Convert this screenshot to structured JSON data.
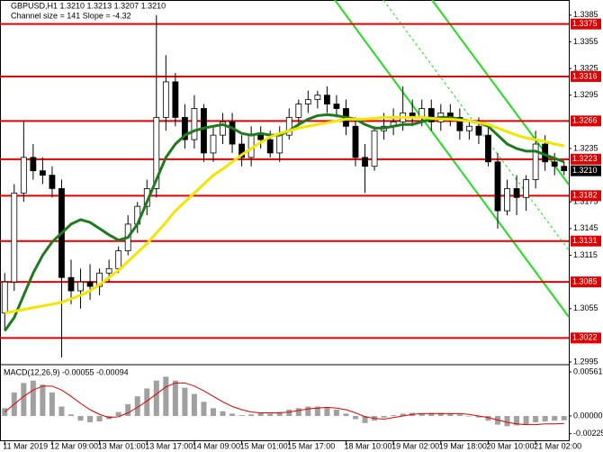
{
  "chart_data": [
    {
      "type": "candlestick",
      "title": "GBPUSD,H1  1.3210 1.3213 1.3207 1.3210",
      "subtitle": "Channel size = 141 Slope = -4.32",
      "categories": [
        "11 Mar 2019",
        null,
        null,
        null,
        null,
        "12 Mar 09:00",
        null,
        null,
        null,
        null,
        "13 Mar 01:00",
        null,
        null,
        null,
        null,
        "13 Mar 17:00",
        null,
        null,
        null,
        null,
        "14 Mar 09:00",
        null,
        null,
        null,
        null,
        "15 Mar 01:00",
        null,
        null,
        null,
        null,
        "15 Mar 17:00",
        null,
        null,
        null,
        null,
        null,
        "18 Mar 10:00",
        null,
        null,
        null,
        null,
        "19 Mar 02:00",
        null,
        null,
        null,
        null,
        "19 Mar 18:00",
        null,
        null,
        null,
        null,
        "20 Mar 10:00",
        null,
        null,
        null,
        null,
        "21 Mar 02:00",
        null,
        null,
        null
      ],
      "open": [
        1.305,
        1.3085,
        1.3185,
        1.3225,
        1.321,
        1.3205,
        1.319,
        1.309,
        1.3075,
        1.3085,
        1.308,
        1.3095,
        1.31,
        1.312,
        1.315,
        1.317,
        1.319,
        1.327,
        1.331,
        1.327,
        1.3245,
        1.328,
        1.323,
        1.325,
        1.3265,
        1.324,
        1.3225,
        1.325,
        1.3245,
        1.323,
        1.325,
        1.327,
        1.3285,
        1.329,
        1.3295,
        1.3285,
        1.328,
        1.326,
        1.3225,
        1.3215,
        1.3255,
        1.326,
        1.3265,
        1.3275,
        1.327,
        1.328,
        1.3265,
        1.3275,
        1.327,
        1.3255,
        1.326,
        1.325,
        1.322,
        1.3165,
        1.319,
        1.318,
        1.32,
        1.324,
        1.322,
        1.3215
      ],
      "high": [
        1.3095,
        1.3195,
        1.3265,
        1.324,
        1.3225,
        1.3215,
        1.32,
        1.311,
        1.31,
        1.3105,
        1.31,
        1.311,
        1.3125,
        1.316,
        1.3175,
        1.32,
        1.3385,
        1.334,
        1.332,
        1.3285,
        1.3295,
        1.3285,
        1.326,
        1.3275,
        1.3275,
        1.325,
        1.326,
        1.326,
        1.3255,
        1.326,
        1.328,
        1.329,
        1.33,
        1.33,
        1.3305,
        1.3295,
        1.329,
        1.327,
        1.324,
        1.326,
        1.3275,
        1.328,
        1.3305,
        1.329,
        1.329,
        1.329,
        1.3285,
        1.3285,
        1.328,
        1.3265,
        1.327,
        1.326,
        1.323,
        1.32,
        1.3205,
        1.3205,
        1.3255,
        1.325,
        1.323,
        1.322
      ],
      "low": [
        1.303,
        1.3075,
        1.3175,
        1.32,
        1.3195,
        1.318,
        1.3,
        1.306,
        1.3055,
        1.3065,
        1.307,
        1.3085,
        1.3095,
        1.3115,
        1.314,
        1.316,
        1.318,
        1.3255,
        1.326,
        1.3235,
        1.3235,
        1.322,
        1.322,
        1.324,
        1.323,
        1.3215,
        1.3215,
        1.3235,
        1.3225,
        1.322,
        1.3245,
        1.326,
        1.3275,
        1.328,
        1.3275,
        1.327,
        1.325,
        1.3215,
        1.3185,
        1.321,
        1.3245,
        1.325,
        1.3255,
        1.326,
        1.326,
        1.3255,
        1.3255,
        1.326,
        1.3245,
        1.3245,
        1.324,
        1.3215,
        1.3145,
        1.316,
        1.316,
        1.3165,
        1.319,
        1.321,
        1.3205,
        1.3205
      ],
      "close": [
        1.3085,
        1.3185,
        1.3225,
        1.321,
        1.3205,
        1.319,
        1.309,
        1.3075,
        1.3085,
        1.308,
        1.3095,
        1.31,
        1.312,
        1.315,
        1.317,
        1.319,
        1.327,
        1.331,
        1.327,
        1.3245,
        1.328,
        1.323,
        1.325,
        1.3265,
        1.324,
        1.3225,
        1.325,
        1.3245,
        1.323,
        1.325,
        1.327,
        1.3285,
        1.329,
        1.3295,
        1.3285,
        1.328,
        1.326,
        1.3225,
        1.3215,
        1.3255,
        1.326,
        1.3265,
        1.3275,
        1.327,
        1.328,
        1.3265,
        1.3275,
        1.327,
        1.3255,
        1.326,
        1.325,
        1.322,
        1.3165,
        1.319,
        1.318,
        1.32,
        1.324,
        1.322,
        1.3215,
        1.321
      ],
      "series": [
        {
          "color": "#1f7a1f",
          "values": [
            1.303,
            1.3045,
            1.307,
            1.3095,
            1.3115,
            1.313,
            1.314,
            1.315,
            1.3155,
            1.3152,
            1.3145,
            1.3138,
            1.3132,
            1.3135,
            1.315,
            1.3175,
            1.32,
            1.3225,
            1.324,
            1.325,
            1.3255,
            1.3258,
            1.326,
            1.3262,
            1.3258,
            1.3252,
            1.325,
            1.3252,
            1.325,
            1.325,
            1.3255,
            1.3262,
            1.3268,
            1.3272,
            1.3273,
            1.3272,
            1.327,
            1.3268,
            1.3262,
            1.3258,
            1.3258,
            1.326,
            1.3262,
            1.3262,
            1.3265,
            1.3268,
            1.327,
            1.327,
            1.3268,
            1.3266,
            1.3264,
            1.326,
            1.325,
            1.324,
            1.3235,
            1.3232,
            1.3232,
            1.3228,
            1.3224,
            1.322
          ]
        },
        {
          "color": "#f2e600",
          "values": [
            1.305,
            1.3052,
            1.3054,
            1.3056,
            1.3058,
            1.306,
            1.3062,
            1.3066,
            1.307,
            1.3075,
            1.3082,
            1.309,
            1.3098,
            1.3108,
            1.3118,
            1.3128,
            1.314,
            1.3152,
            1.3165,
            1.3175,
            1.3185,
            1.3195,
            1.3205,
            1.3212,
            1.322,
            1.3228,
            1.3235,
            1.3242,
            1.3248,
            1.3252,
            1.3255,
            1.3258,
            1.326,
            1.3262,
            1.3264,
            1.3266,
            1.3268,
            1.3268,
            1.3268,
            1.3269,
            1.327,
            1.327,
            1.327,
            1.327,
            1.327,
            1.3269,
            1.3268,
            1.3268,
            1.3267,
            1.3266,
            1.3264,
            1.3262,
            1.3258,
            1.3254,
            1.325,
            1.3247,
            1.3245,
            1.3243,
            1.324,
            1.3238
          ]
        }
      ],
      "levels": [
        1.3375,
        1.3316,
        1.3266,
        1.3223,
        1.3182,
        1.3131,
        1.3085,
        1.3022
      ],
      "level_color": "#e00000",
      "last_price": {
        "value": 1.321,
        "label": "1.3210"
      },
      "ylim": [
        1.2992,
        1.3402
      ],
      "yticks": [
        1.3385,
        1.3355,
        1.3325,
        1.3295,
        1.3235,
        1.3175,
        1.3145,
        1.3115,
        1.3055,
        1.2995
      ]
    },
    {
      "type": "macd",
      "title": "MACD(12,26,9) -0.00055 -0.00094",
      "values": [
        0.001,
        0.003,
        0.0042,
        0.0045,
        0.004,
        0.003,
        0.0012,
        0.0002,
        -0.0006,
        -0.0008,
        -0.0007,
        -0.0004,
        0.0005,
        0.0015,
        0.0025,
        0.0035,
        0.0045,
        0.005,
        0.0045,
        0.0036,
        0.0028,
        0.0018,
        0.001,
        0.0006,
        0.0003,
        0.0001,
        0.0002,
        0.0004,
        0.0003,
        0.0005,
        0.0008,
        0.001,
        0.0012,
        0.0012,
        0.0011,
        0.0008,
        0.0003,
        -0.0004,
        -0.0009,
        -0.0006,
        -0.0002,
        0.0001,
        0.0003,
        0.0004,
        0.0003,
        0.0004,
        0.0004,
        0.0003,
        0.0002,
        0.0,
        -0.0002,
        -0.0006,
        -0.0011,
        -0.0013,
        -0.0012,
        -0.0011,
        -0.0008,
        -0.0007,
        -0.0006,
        -0.00055
      ],
      "color": "#a0a0a0",
      "signal": {
        "color": "#e00000",
        "values": [
          0.0005,
          0.0015,
          0.0025,
          0.0033,
          0.0038,
          0.0038,
          0.0033,
          0.0025,
          0.0016,
          0.0008,
          0.0002,
          -0.0002,
          -0.0001,
          0.0004,
          0.0011,
          0.0019,
          0.0028,
          0.0037,
          0.0042,
          0.0042,
          0.0038,
          0.0032,
          0.0025,
          0.0018,
          0.0012,
          0.0008,
          0.0005,
          0.0004,
          0.0004,
          0.0004,
          0.0005,
          0.0007,
          0.0009,
          0.001,
          0.0011,
          0.001,
          0.0008,
          0.0004,
          -0.0001,
          -0.0003,
          -0.0004,
          -0.0002,
          0.0,
          0.0002,
          0.0003,
          0.0003,
          0.0003,
          0.0003,
          0.0003,
          0.0002,
          0.0,
          -0.0002,
          -0.0005,
          -0.0008,
          -0.001,
          -0.0011,
          -0.0011,
          -0.001,
          -0.001,
          -0.00094
        ]
      },
      "ylim": [
        -0.00321,
        0.00653
      ],
      "yticks": [
        0.00561,
        {
          "value": 0,
          "label": "0.00000"
        },
        -0.00225
      ]
    }
  ]
}
